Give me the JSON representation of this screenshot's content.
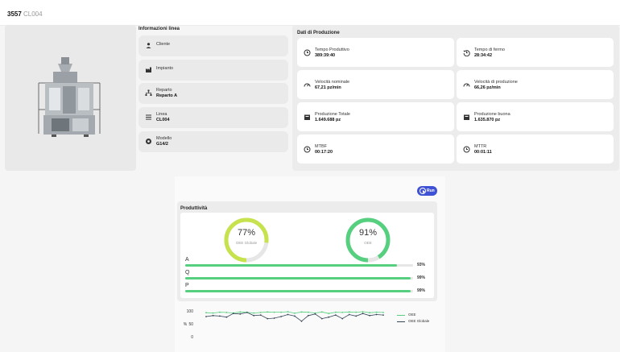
{
  "header": {
    "code": "3557",
    "line": "CL004"
  },
  "info": {
    "title": "Informazioni linea",
    "items": [
      {
        "label": "Cliente",
        "value": "",
        "icon": "person-icon"
      },
      {
        "label": "Impianto",
        "value": "",
        "icon": "factory-icon"
      },
      {
        "label": "Reparto",
        "value": "Reparto A",
        "icon": "department-icon"
      },
      {
        "label": "Linea",
        "value": "CL004",
        "icon": "list-icon"
      },
      {
        "label": "Modello",
        "value": "G14/2",
        "icon": "model-icon"
      }
    ]
  },
  "production": {
    "title": "Dati di Produzione",
    "cards": [
      {
        "label": "Tempo Produttivo",
        "value": "389:39:40",
        "icon": "clock-icon"
      },
      {
        "label": "Tempo di fermo",
        "value": "28:34:42",
        "icon": "history-icon"
      },
      {
        "label": "Velocità nominale",
        "value": "67,21 pz/min",
        "icon": "speedometer-icon"
      },
      {
        "label": "Velocità di produzione",
        "value": "66,26 pz/min",
        "icon": "speedometer-icon"
      },
      {
        "label": "Produzione Totale",
        "value": "1.649.688 pz",
        "icon": "box-icon"
      },
      {
        "label": "Produzione buona",
        "value": "1.635.870 pz",
        "icon": "box-icon"
      },
      {
        "label": "MTBF",
        "value": "00:17:20",
        "icon": "clock-icon"
      },
      {
        "label": "MTTR",
        "value": "00:01:11",
        "icon": "clock-icon"
      }
    ]
  },
  "run_button": {
    "label": "Run"
  },
  "productivity": {
    "title": "Produttività",
    "gauges": [
      {
        "value_text": "77%",
        "value": 77,
        "label": "OEE Globale",
        "color": "#c6e34e"
      },
      {
        "value_text": "91%",
        "value": 91,
        "label": "OEE",
        "color": "#56d07f"
      }
    ],
    "bars": [
      {
        "label": "A",
        "value": 93,
        "value_text": "93%"
      },
      {
        "label": "Q",
        "value": 99,
        "value_text": "99%"
      },
      {
        "label": "P",
        "value": 99,
        "value_text": "99%"
      }
    ]
  },
  "chart_data": {
    "type": "line",
    "ylabel": "%",
    "yticks": [
      "100",
      "50",
      "0"
    ],
    "ylim": [
      0,
      100
    ],
    "series": [
      {
        "name": "OEE",
        "color": "#56d07f",
        "values": [
          93,
          92,
          95,
          94,
          92,
          96,
          95,
          92,
          94,
          96,
          95,
          95,
          97,
          91,
          96,
          95,
          92,
          96,
          90,
          95,
          94,
          96,
          95,
          97,
          93,
          95,
          94
        ]
      },
      {
        "name": "OEE Globale",
        "color": "#37475a",
        "values": [
          78,
          82,
          80,
          76,
          90,
          88,
          94,
          82,
          84,
          70,
          72,
          78,
          86,
          80,
          60,
          82,
          88,
          70,
          76,
          84,
          70,
          86,
          80,
          90,
          82,
          86,
          84
        ]
      }
    ]
  }
}
